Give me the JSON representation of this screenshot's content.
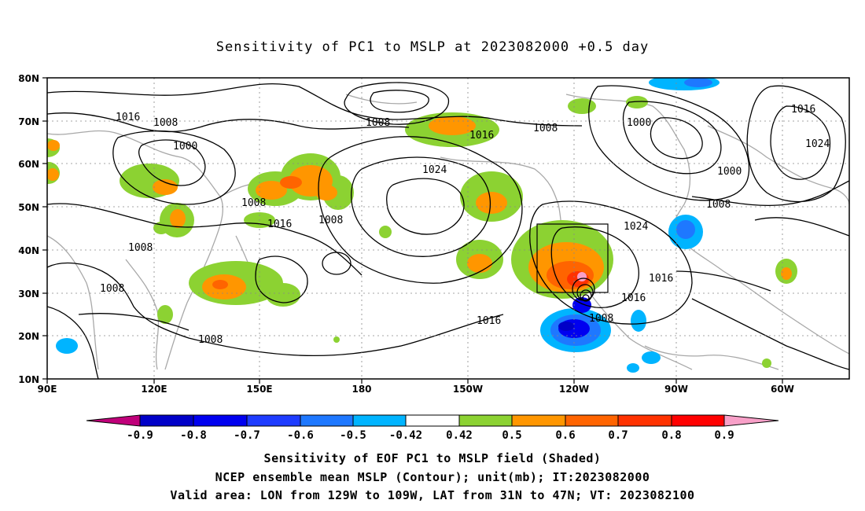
{
  "title": "Sensitivity of PC1 to MSLP at 2023082000 +0.5 day",
  "map": {
    "lon_labels": [
      "90E",
      "120E",
      "150E",
      "180",
      "150W",
      "120W",
      "90W",
      "60W"
    ],
    "lat_labels": [
      "80N",
      "70N",
      "60N",
      "50N",
      "40N",
      "30N",
      "20N",
      "10N"
    ],
    "contour_labels": [
      {
        "text": "1016"
      },
      {
        "text": "1008"
      },
      {
        "text": "1000"
      },
      {
        "text": "1008"
      },
      {
        "text": "1016"
      },
      {
        "text": "1024"
      },
      {
        "text": "1008"
      },
      {
        "text": "1000"
      },
      {
        "text": "1016"
      },
      {
        "text": "1024"
      },
      {
        "text": "1000"
      },
      {
        "text": "1008"
      },
      {
        "text": "1008"
      },
      {
        "text": "1016"
      },
      {
        "text": "1008"
      },
      {
        "text": "1008"
      },
      {
        "text": "1008"
      },
      {
        "text": "1024"
      },
      {
        "text": "1016"
      },
      {
        "text": "1016"
      },
      {
        "text": "1008"
      },
      {
        "text": "1016"
      },
      {
        "text": "1008"
      }
    ],
    "colors": {
      "neg": [
        "#c0007a",
        "#0000c8",
        "#0000f0",
        "#1e3cff",
        "#1e78ff",
        "#00b4ff"
      ],
      "neutral": "#ffffff",
      "pos": [
        "#8cd232",
        "#ff9600",
        "#ff6400",
        "#ff3200",
        "#ff0000",
        "#f8a0c8"
      ]
    }
  },
  "colorbar": {
    "labels": [
      "-0.9",
      "-0.8",
      "-0.7",
      "-0.6",
      "-0.5",
      "-0.42",
      "0.42",
      "0.5",
      "0.6",
      "0.7",
      "0.8",
      "0.9"
    ]
  },
  "caption": {
    "line1": "Sensitivity of EOF PC1 to MSLP field (Shaded)",
    "line2": "NCEP ensemble mean MSLP (Contour); unit(mb); IT:2023082000",
    "line3": "Valid area: LON from 129W to 109W, LAT from 31N to 47N; VT: 2023082100"
  }
}
